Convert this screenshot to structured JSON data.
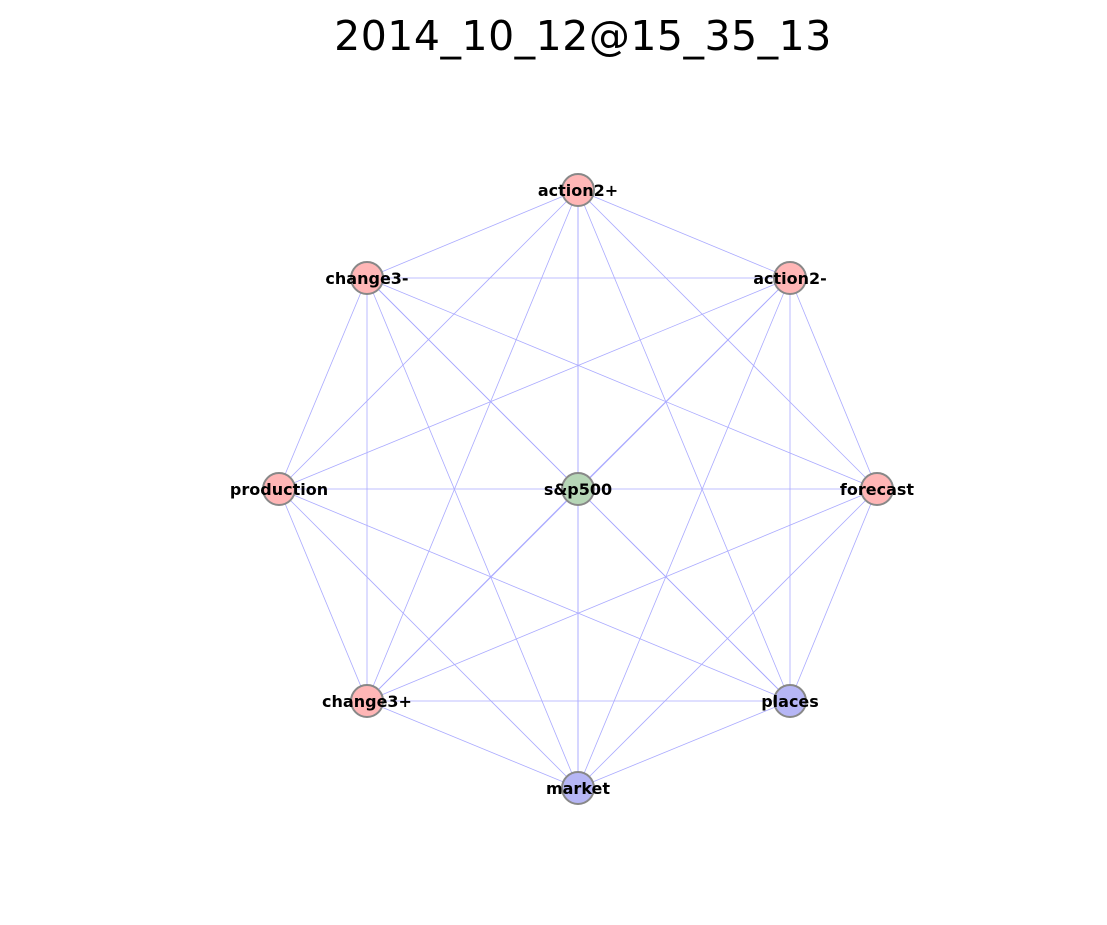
{
  "title": "2014_10_12@15_35_13",
  "colors": {
    "edge": "#aaaaff",
    "node_stroke": "#888888",
    "pink": "#ffb6b6",
    "blue": "#b6b6f5",
    "green": "#b6d6b6"
  },
  "graph": {
    "nodes": [
      {
        "id": "action2+",
        "label": "action2+",
        "color": "pink"
      },
      {
        "id": "action2-",
        "label": "action2-",
        "color": "pink"
      },
      {
        "id": "forecast",
        "label": "forecast",
        "color": "pink"
      },
      {
        "id": "places",
        "label": "places",
        "color": "blue"
      },
      {
        "id": "market",
        "label": "market",
        "color": "blue"
      },
      {
        "id": "change3+",
        "label": "change3+",
        "color": "pink"
      },
      {
        "id": "production",
        "label": "production",
        "color": "pink"
      },
      {
        "id": "change3-",
        "label": "change3-",
        "color": "pink"
      },
      {
        "id": "s&p500",
        "label": "s&p500",
        "color": "green"
      }
    ],
    "edges": [
      [
        "action2+",
        "change3-"
      ],
      [
        "action2+",
        "action2-"
      ],
      [
        "action2+",
        "production"
      ],
      [
        "action2+",
        "change3+"
      ],
      [
        "action2+",
        "market"
      ],
      [
        "action2+",
        "places"
      ],
      [
        "action2+",
        "forecast"
      ],
      [
        "change3-",
        "action2-"
      ],
      [
        "change3-",
        "production"
      ],
      [
        "change3-",
        "change3+"
      ],
      [
        "change3-",
        "market"
      ],
      [
        "change3-",
        "places"
      ],
      [
        "change3-",
        "forecast"
      ],
      [
        "change3-",
        "s&p500"
      ],
      [
        "action2-",
        "production"
      ],
      [
        "action2-",
        "change3+"
      ],
      [
        "action2-",
        "market"
      ],
      [
        "action2-",
        "places"
      ],
      [
        "action2-",
        "forecast"
      ],
      [
        "action2-",
        "s&p500"
      ],
      [
        "production",
        "change3+"
      ],
      [
        "production",
        "market"
      ],
      [
        "production",
        "places"
      ],
      [
        "production",
        "forecast"
      ],
      [
        "forecast",
        "change3+"
      ],
      [
        "forecast",
        "market"
      ],
      [
        "forecast",
        "places"
      ],
      [
        "change3+",
        "market"
      ],
      [
        "change3+",
        "places"
      ],
      [
        "change3+",
        "s&p500"
      ],
      [
        "places",
        "market"
      ],
      [
        "places",
        "s&p500"
      ],
      [
        "market",
        "s&p500"
      ],
      [
        "action2+",
        "s&p500"
      ]
    ]
  }
}
